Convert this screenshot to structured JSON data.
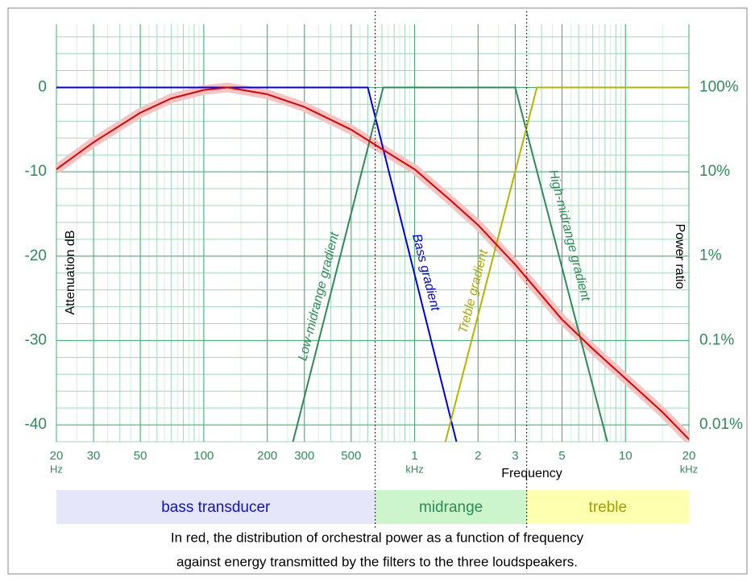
{
  "chart_data": {
    "type": "line",
    "x_label": "Frequency",
    "y_label": "Attenuation dB",
    "y2_label": "Power ratio",
    "xlog": true,
    "xlim": [
      20,
      20000
    ],
    "xticks": [
      {
        "value": 20,
        "label": "20",
        "unit": "Hz"
      },
      30,
      50,
      100,
      200,
      300,
      500,
      {
        "value": 1000,
        "label": "1",
        "unit": "kHz"
      },
      {
        "value": 2000,
        "label": "2"
      },
      {
        "value": 3000,
        "label": "3"
      },
      {
        "value": 5000,
        "label": "5"
      },
      {
        "value": 10000,
        "label": "10"
      },
      {
        "value": 20000,
        "label": "20",
        "unit": "kHz"
      }
    ],
    "ylim": [
      -42,
      7.5
    ],
    "yticks": [
      0,
      -10,
      -20,
      -30,
      -40
    ],
    "y2log": true,
    "y2lim": [
      0.0063,
      562
    ],
    "y2ticks": [
      {
        "value": 100,
        "label": "100%"
      },
      {
        "value": 10,
        "label": "10%"
      },
      {
        "value": 1,
        "label": "1%"
      },
      {
        "value": 0.1,
        "label": "0.1%"
      },
      {
        "value": 0.01,
        "label": "0.01%"
      }
    ],
    "grid": true,
    "minor_grid": true,
    "series": [
      {
        "color": "#e00000",
        "halo": "#f3c4c4",
        "x": [
          20,
          30,
          50,
          70,
          100,
          130,
          200,
          300,
          500,
          700,
          1000,
          1500,
          2000,
          3000,
          5000,
          7000,
          10000,
          15000,
          20000
        ],
        "values": [
          -9.7,
          -6.5,
          -3.0,
          -1.3,
          -0.3,
          0,
          -0.8,
          -2.3,
          -5.0,
          -7.3,
          -9.7,
          -13.5,
          -16.3,
          -21,
          -27.5,
          -31,
          -34.5,
          -38.5,
          -41.7
        ]
      },
      {
        "color": "#0000dd",
        "x": [
          20,
          600,
          1580
        ],
        "values": [
          0,
          0,
          -42
        ]
      },
      {
        "color": "#2e8b57",
        "x": [
          265,
          710,
          3000,
          8200
        ],
        "values": [
          -42,
          0,
          0,
          -42
        ]
      },
      {
        "color": "#b5b500",
        "x": [
          1400,
          3800,
          20000
        ],
        "values": [
          -42,
          0,
          0
        ]
      }
    ],
    "annotations": [
      "Low-midrange gradient",
      "Bass gradient",
      "Treble gradient",
      "High-midrange gradient"
    ],
    "bands": [
      {
        "name": "bass transducer",
        "from": 20,
        "to": 650,
        "color": "#e6e6fa",
        "text_color": "#1010cc"
      },
      {
        "name": "midrange",
        "from": 650,
        "to": 3400,
        "color": "#ccf5cc",
        "text_color": "#2e8b57"
      },
      {
        "name": "treble",
        "from": 3400,
        "to": 20000,
        "color": "#ffffb0",
        "text_color": "#a0a000"
      }
    ],
    "caption": [
      "In red, the distribution of orchestral power as a function of frequency",
      "against energy transmitted by the filters to the three loudspeakers."
    ]
  }
}
